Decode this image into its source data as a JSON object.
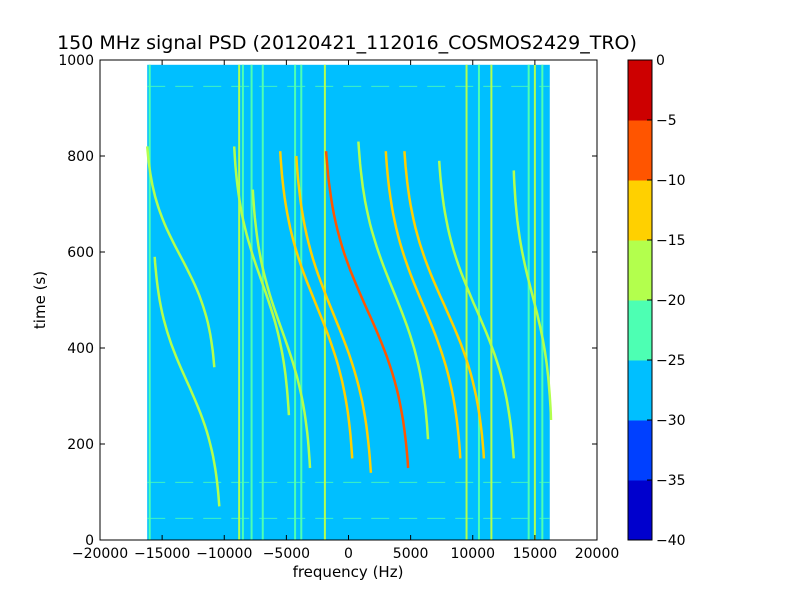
{
  "chart_data": {
    "type": "heatmap",
    "title": "150 MHz signal PSD (20120421_112016_COSMOS2429_TRO)",
    "xlabel": "frequency (Hz)",
    "ylabel": "time (s)",
    "xlim": [
      -20000,
      20000
    ],
    "ylim": [
      0,
      1000
    ],
    "xticks": [
      -20000,
      -15000,
      -10000,
      -5000,
      0,
      5000,
      10000,
      15000,
      20000
    ],
    "xtick_labels": [
      "−20000",
      "−15000",
      "−10000",
      "−5000",
      "0",
      "5000",
      "10000",
      "15000",
      "20000"
    ],
    "yticks": [
      0,
      200,
      400,
      600,
      800,
      1000
    ],
    "ytick_labels": [
      "0",
      "200",
      "400",
      "600",
      "800",
      "1000"
    ],
    "grid": false,
    "data_extent": {
      "x": [
        -16200,
        16200
      ],
      "y": [
        0,
        990
      ]
    },
    "background_level": -27.5,
    "colorbar": {
      "levels": [
        -40,
        -35,
        -30,
        -25,
        -20,
        -15,
        -10,
        -5,
        0
      ],
      "tick_labels": [
        "−40",
        "−35",
        "−30",
        "−25",
        "−20",
        "−15",
        "−10",
        "−5",
        "0"
      ],
      "colors": [
        "#0000cd",
        "#0040ff",
        "#00bfff",
        "#4dffb3",
        "#b3ff4d",
        "#ffd000",
        "#ff5500",
        "#cd0000"
      ],
      "position": "right"
    },
    "vertical_lines": [
      {
        "x": -16000,
        "level": -22
      },
      {
        "x": -8800,
        "level": -18
      },
      {
        "x": -8500,
        "level": -22
      },
      {
        "x": -7800,
        "level": -22
      },
      {
        "x": -6900,
        "level": -22
      },
      {
        "x": -4300,
        "level": -22
      },
      {
        "x": -3800,
        "level": -22
      },
      {
        "x": -1900,
        "level": -20
      },
      {
        "x": 9500,
        "level": -18
      },
      {
        "x": 10500,
        "level": -22
      },
      {
        "x": 11500,
        "level": -18
      },
      {
        "x": 14500,
        "level": -22
      },
      {
        "x": 15000,
        "level": -20
      },
      {
        "x": 15600,
        "level": -22
      }
    ],
    "doppler_tracks": [
      {
        "f_mid": -13500,
        "t_mid": 590,
        "half_span": 2700,
        "t_span": 460,
        "level": -18
      },
      {
        "f_mid": -13000,
        "t_mid": 330,
        "half_span": 2600,
        "t_span": 520,
        "level": -18
      },
      {
        "f_mid": -7000,
        "t_mid": 540,
        "half_span": 2200,
        "t_span": 560,
        "level": -18
      },
      {
        "f_mid": -5400,
        "t_mid": 440,
        "half_span": 2300,
        "t_span": 580,
        "level": -18
      },
      {
        "f_mid": -2600,
        "t_mid": 490,
        "half_span": 2900,
        "t_span": 640,
        "level": -12
      },
      {
        "f_mid": -1200,
        "t_mid": 470,
        "half_span": 3000,
        "t_span": 660,
        "level": -12
      },
      {
        "f_mid": 1500,
        "t_mid": 480,
        "half_span": 3300,
        "t_span": 660,
        "level": -6
      },
      {
        "f_mid": 3600,
        "t_mid": 520,
        "half_span": 2800,
        "t_span": 620,
        "level": -18
      },
      {
        "f_mid": 6000,
        "t_mid": 490,
        "half_span": 3000,
        "t_span": 640,
        "level": -12
      },
      {
        "f_mid": 7700,
        "t_mid": 490,
        "half_span": 3200,
        "t_span": 640,
        "level": -12
      },
      {
        "f_mid": 10300,
        "t_mid": 480,
        "half_span": 3000,
        "t_span": 620,
        "level": -18
      },
      {
        "f_mid": 14800,
        "t_mid": 510,
        "half_span": 1500,
        "t_span": 520,
        "level": -20
      }
    ],
    "horizontal_streaks": [
      {
        "t": 120,
        "level": -22
      },
      {
        "t": 45,
        "level": -22
      },
      {
        "t": 945,
        "level": -22
      }
    ]
  }
}
